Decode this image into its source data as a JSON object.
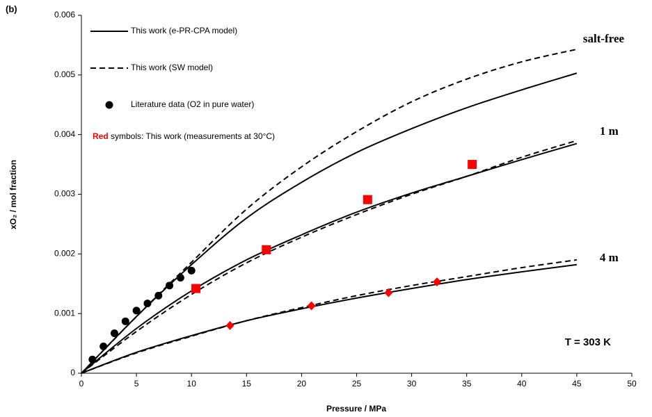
{
  "chart_data": {
    "type": "line",
    "panel": "(b)",
    "x_label": "Pressure / MPa",
    "y_label": "xO₂ / mol fraction",
    "xlim": [
      0,
      50
    ],
    "ylim": [
      0,
      0.006
    ],
    "xticks": [
      0,
      5,
      10,
      15,
      20,
      25,
      30,
      35,
      40,
      45,
      50
    ],
    "yticks": [
      0,
      0.001,
      0.002,
      0.003,
      0.004,
      0.005,
      0.006
    ],
    "grid": false,
    "line_color": "#000000",
    "x": [
      0,
      5,
      10,
      15,
      20,
      25,
      30,
      35,
      40,
      45
    ],
    "curves": [
      {
        "label": "salt-free",
        "solid": [
          0,
          0.00095,
          0.00182,
          0.0026,
          0.0032,
          0.0037,
          0.0041,
          0.00445,
          0.00475,
          0.00503
        ],
        "dashed": [
          0,
          0.00095,
          0.00186,
          0.00275,
          0.00346,
          0.00405,
          0.00455,
          0.00493,
          0.00522,
          0.00543
        ]
      },
      {
        "label": "1 m",
        "solid": [
          0,
          0.00075,
          0.00138,
          0.0019,
          0.00232,
          0.0027,
          0.00302,
          0.0033,
          0.00358,
          0.00385
        ],
        "dashed": [
          0,
          0.0007,
          0.00132,
          0.00185,
          0.00228,
          0.00266,
          0.003,
          0.0033,
          0.00362,
          0.0039
        ]
      },
      {
        "label": "4 m",
        "solid": [
          0,
          0.00035,
          0.00063,
          0.00088,
          0.00108,
          0.00126,
          0.00142,
          0.00157,
          0.0017,
          0.00182
        ],
        "dashed": [
          0,
          0.00034,
          0.00062,
          0.00088,
          0.0011,
          0.0013,
          0.00147,
          0.00162,
          0.00177,
          0.0019
        ]
      }
    ],
    "literature": {
      "color": "#000000",
      "x": [
        1,
        2,
        3,
        4,
        5,
        6,
        7,
        8,
        9,
        10
      ],
      "values": [
        0.00023,
        0.00045,
        0.00067,
        0.00087,
        0.00105,
        0.00117,
        0.0013,
        0.00147,
        0.0016,
        0.00172
      ]
    },
    "measurements": [
      {
        "marker": "square",
        "color": "#ff0000",
        "x": [
          10.4,
          16.8,
          26,
          35.5
        ],
        "values": [
          0.00142,
          0.00207,
          0.00291,
          0.0035
        ]
      },
      {
        "marker": "diamond",
        "color": "#ff0000",
        "x": [
          13.5,
          20.9,
          27.9,
          32.3
        ],
        "values": [
          0.0008,
          0.00113,
          0.00135,
          0.00153
        ]
      }
    ],
    "legend": [
      {
        "name": "This work (e-PR-CPA model)",
        "style": "solid"
      },
      {
        "name": "This work (SW model)",
        "style": "dashed"
      },
      {
        "name": "Literature data (O2 in pure water)",
        "marker": "circle"
      }
    ],
    "note": {
      "highlight": "Red",
      "text": " symbols: This work (measurements at 30°C)",
      "color": "#ff0000"
    },
    "annotation": "T = 303 K"
  }
}
